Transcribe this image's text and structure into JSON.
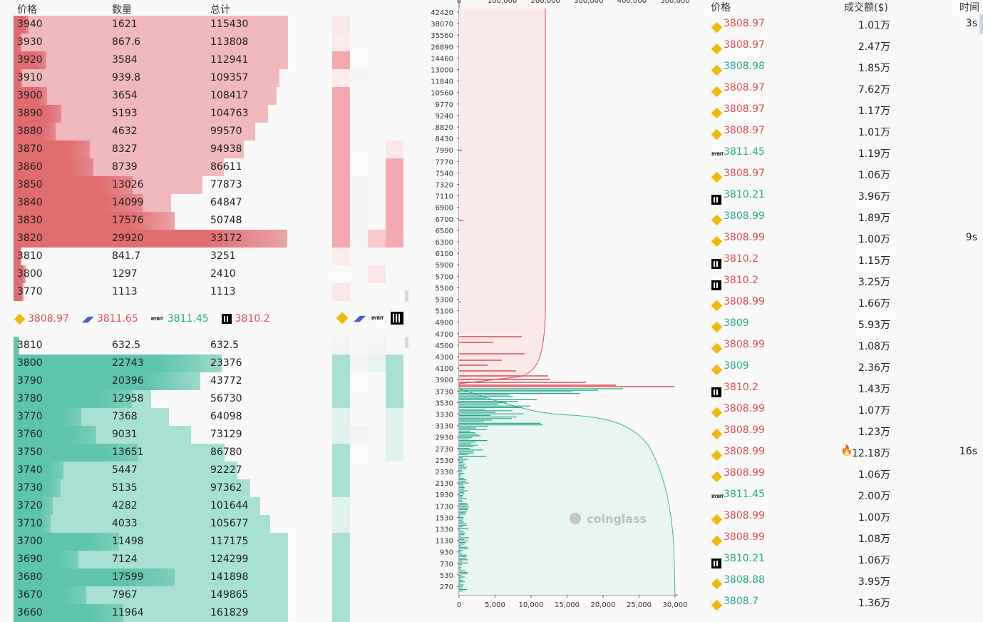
{
  "orderbook": {
    "headers": {
      "price": "价格",
      "qty": "数量",
      "total": "总计"
    },
    "asks": [
      {
        "price": "3940",
        "qty": "1621",
        "total": "115430",
        "q": 1621,
        "t": 115430
      },
      {
        "price": "3930",
        "qty": "867.6",
        "total": "113808",
        "q": 867.6,
        "t": 113808
      },
      {
        "price": "3920",
        "qty": "3584",
        "total": "112941",
        "q": 3584,
        "t": 112941
      },
      {
        "price": "3910",
        "qty": "939.8",
        "total": "109357",
        "q": 939.8,
        "t": 109357
      },
      {
        "price": "3900",
        "qty": "3654",
        "total": "108417",
        "q": 3654,
        "t": 108417
      },
      {
        "price": "3890",
        "qty": "5193",
        "total": "104763",
        "q": 5193,
        "t": 104763
      },
      {
        "price": "3880",
        "qty": "4632",
        "total": "99570",
        "q": 4632,
        "t": 99570
      },
      {
        "price": "3870",
        "qty": "8327",
        "total": "94938",
        "q": 8327,
        "t": 94938
      },
      {
        "price": "3860",
        "qty": "8739",
        "total": "86611",
        "q": 8739,
        "t": 86611
      },
      {
        "price": "3850",
        "qty": "13026",
        "total": "77873",
        "q": 13026,
        "t": 77873
      },
      {
        "price": "3840",
        "qty": "14099",
        "total": "64847",
        "q": 14099,
        "t": 64847
      },
      {
        "price": "3830",
        "qty": "17576",
        "total": "50748",
        "q": 17576,
        "t": 50748
      },
      {
        "price": "3820",
        "qty": "29920",
        "total": "33172",
        "q": 29920,
        "t": 33172
      },
      {
        "price": "3810",
        "qty": "841.7",
        "total": "3251",
        "q": 841.7,
        "t": 3251
      },
      {
        "price": "3800",
        "qty": "1297",
        "total": "2410",
        "q": 1297,
        "t": 2410
      },
      {
        "price": "3770",
        "qty": "1113",
        "total": "1113",
        "q": 1113,
        "t": 1113
      }
    ],
    "bids": [
      {
        "price": "3810",
        "qty": "632.5",
        "total": "632.5",
        "q": 632.5,
        "t": 632.5
      },
      {
        "price": "3800",
        "qty": "22743",
        "total": "23376",
        "q": 22743,
        "t": 23376
      },
      {
        "price": "3790",
        "qty": "20396",
        "total": "43772",
        "q": 20396,
        "t": 43772
      },
      {
        "price": "3780",
        "qty": "12958",
        "total": "56730",
        "q": 12958,
        "t": 56730
      },
      {
        "price": "3770",
        "qty": "7368",
        "total": "64098",
        "q": 7368,
        "t": 64098
      },
      {
        "price": "3760",
        "qty": "9031",
        "total": "73129",
        "q": 9031,
        "t": 73129
      },
      {
        "price": "3750",
        "qty": "13651",
        "total": "86780",
        "q": 13651,
        "t": 86780
      },
      {
        "price": "3740",
        "qty": "5447",
        "total": "92227",
        "q": 5447,
        "t": 92227
      },
      {
        "price": "3730",
        "qty": "5135",
        "total": "97362",
        "q": 5135,
        "t": 97362
      },
      {
        "price": "3720",
        "qty": "4282",
        "total": "101644",
        "q": 4282,
        "t": 101644
      },
      {
        "price": "3710",
        "qty": "4033",
        "total": "105677",
        "q": 4033,
        "t": 105677
      },
      {
        "price": "3700",
        "qty": "11498",
        "total": "117175",
        "q": 11498,
        "t": 117175
      },
      {
        "price": "3690",
        "qty": "7124",
        "total": "124299",
        "q": 7124,
        "t": 124299
      },
      {
        "price": "3680",
        "qty": "17599",
        "total": "141898",
        "q": 17599,
        "t": 141898
      },
      {
        "price": "3670",
        "qty": "7967",
        "total": "149865",
        "q": 7967,
        "t": 149865
      },
      {
        "price": "3660",
        "qty": "11964",
        "total": "161829",
        "q": 11964,
        "t": 161829
      }
    ],
    "mid_prices": [
      {
        "exchange": "binance",
        "icon": "binance-icon",
        "price": "3808.97",
        "color": "red"
      },
      {
        "exchange": "bitmex",
        "icon": "bitmex-icon",
        "price": "3811.65",
        "color": "red"
      },
      {
        "exchange": "bybit",
        "icon": "bybit-icon",
        "icon_text": "BYBIT",
        "price": "3811.45",
        "color": "green"
      },
      {
        "exchange": "okx",
        "icon": "okx-icon",
        "price": "3810.2",
        "color": "red"
      }
    ]
  },
  "depth_chart": {
    "top_axis_ticks": [
      "0",
      "100,000",
      "200,000",
      "300,000",
      "400,000",
      "500,000"
    ],
    "bottom_axis_ticks": [
      "0",
      "5,000",
      "10,000",
      "15,000",
      "20,000",
      "25,000",
      "30,000"
    ],
    "price_ticks": [
      "42420",
      "38070",
      "35560",
      "26890",
      "14460",
      "13000",
      "11840",
      "10560",
      "9770",
      "9240",
      "8820",
      "8430",
      "7990",
      "7770",
      "7540",
      "7320",
      "7110",
      "6900",
      "6700",
      "6500",
      "6300",
      "6100",
      "5900",
      "5700",
      "5500",
      "5300",
      "5100",
      "4900",
      "4700",
      "4500",
      "4300",
      "4100",
      "3900",
      "3730",
      "3530",
      "3330",
      "3130",
      "2930",
      "2730",
      "2530",
      "2330",
      "2130",
      "1930",
      "1730",
      "1530",
      "1330",
      "1130",
      "930",
      "730",
      "530",
      "270"
    ],
    "watermark": "coinglass"
  },
  "trades": {
    "headers": {
      "price": "价格",
      "amount": "成交额($)",
      "time": "时间"
    },
    "rows": [
      {
        "ex": "binance",
        "price": "3808.97",
        "side": "red",
        "amount": "1.01万",
        "time": "3s"
      },
      {
        "ex": "binance",
        "price": "3808.97",
        "side": "red",
        "amount": "2.47万",
        "time": ""
      },
      {
        "ex": "binance",
        "price": "3808.98",
        "side": "green",
        "amount": "1.85万",
        "time": ""
      },
      {
        "ex": "binance",
        "price": "3808.97",
        "side": "red",
        "amount": "7.62万",
        "time": ""
      },
      {
        "ex": "binance",
        "price": "3808.97",
        "side": "red",
        "amount": "1.17万",
        "time": ""
      },
      {
        "ex": "binance",
        "price": "3808.97",
        "side": "red",
        "amount": "1.01万",
        "time": ""
      },
      {
        "ex": "bybit",
        "price": "3811.45",
        "side": "green",
        "amount": "1.19万",
        "time": ""
      },
      {
        "ex": "binance",
        "price": "3808.97",
        "side": "red",
        "amount": "1.06万",
        "time": ""
      },
      {
        "ex": "okx",
        "price": "3810.21",
        "side": "green",
        "amount": "3.96万",
        "time": ""
      },
      {
        "ex": "binance",
        "price": "3808.99",
        "side": "green",
        "amount": "1.89万",
        "time": ""
      },
      {
        "ex": "binance",
        "price": "3808.99",
        "side": "red",
        "amount": "1.00万",
        "time": "9s"
      },
      {
        "ex": "okx",
        "price": "3810.2",
        "side": "red",
        "amount": "1.15万",
        "time": ""
      },
      {
        "ex": "okx",
        "price": "3810.2",
        "side": "red",
        "amount": "3.25万",
        "time": ""
      },
      {
        "ex": "binance",
        "price": "3808.99",
        "side": "red",
        "amount": "1.66万",
        "time": ""
      },
      {
        "ex": "binance",
        "price": "3809",
        "side": "green",
        "amount": "5.93万",
        "time": ""
      },
      {
        "ex": "binance",
        "price": "3808.99",
        "side": "red",
        "amount": "1.08万",
        "time": ""
      },
      {
        "ex": "binance",
        "price": "3809",
        "side": "green",
        "amount": "2.36万",
        "time": ""
      },
      {
        "ex": "okx",
        "price": "3810.2",
        "side": "red",
        "amount": "1.43万",
        "time": ""
      },
      {
        "ex": "binance",
        "price": "3808.99",
        "side": "red",
        "amount": "1.07万",
        "time": ""
      },
      {
        "ex": "binance",
        "price": "3808.99",
        "side": "red",
        "amount": "1.23万",
        "time": ""
      },
      {
        "ex": "binance",
        "price": "3808.99",
        "side": "red",
        "amount": "12.18万",
        "time": "16s",
        "fire": true
      },
      {
        "ex": "binance",
        "price": "3808.99",
        "side": "red",
        "amount": "1.06万",
        "time": ""
      },
      {
        "ex": "bybit",
        "price": "3811.45",
        "side": "green",
        "amount": "2.00万",
        "time": ""
      },
      {
        "ex": "binance",
        "price": "3808.99",
        "side": "red",
        "amount": "1.00万",
        "time": ""
      },
      {
        "ex": "binance",
        "price": "3808.99",
        "side": "red",
        "amount": "1.08万",
        "time": ""
      },
      {
        "ex": "okx",
        "price": "3810.21",
        "side": "green",
        "amount": "1.06万",
        "time": ""
      },
      {
        "ex": "binance",
        "price": "3808.88",
        "side": "green",
        "amount": "3.95万",
        "time": ""
      },
      {
        "ex": "binance",
        "price": "3808.7",
        "side": "green",
        "amount": "1.36万",
        "time": ""
      }
    ]
  },
  "colors": {
    "ask_bar": "#e06c6f",
    "ask_total": "#f0b9bb",
    "bid_bar": "#5fc4ad",
    "bid_total": "#a8e0d3",
    "red_text": "#e04b56",
    "green_text": "#22a88e",
    "binance": "#F0B90B"
  }
}
